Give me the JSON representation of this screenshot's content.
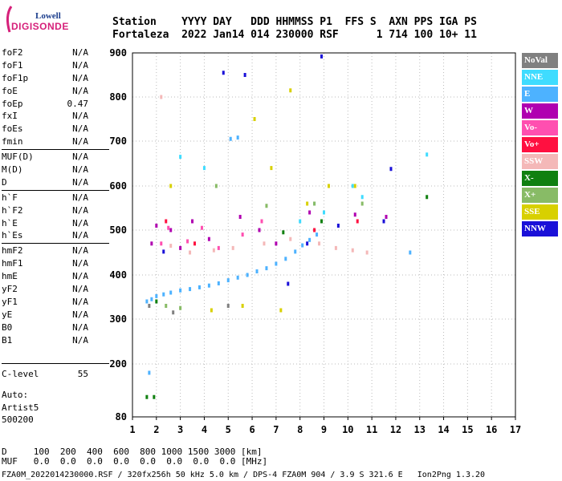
{
  "logo": {
    "line1": "Lowell",
    "line2": "DIGISONDE"
  },
  "header": {
    "line1": "Station    YYYY DAY   DDD HHMMSS P1  FFS S  AXN PPS IGA PS",
    "line2": "Fortaleza  2022 Jan14 014 230000 RSF      1 714 100 10+ 11"
  },
  "params": {
    "group1": [
      {
        "name": "foF2",
        "value": "N/A"
      },
      {
        "name": "foF1",
        "value": "N/A"
      },
      {
        "name": "foF1p",
        "value": "N/A"
      },
      {
        "name": "foE",
        "value": "N/A"
      },
      {
        "name": "foEp",
        "value": "0.47"
      },
      {
        "name": "fxI",
        "value": "N/A"
      },
      {
        "name": "foEs",
        "value": "N/A"
      },
      {
        "name": "fmin",
        "value": "N/A"
      }
    ],
    "group2": [
      {
        "name": "MUF(D)",
        "value": "N/A"
      },
      {
        "name": "M(D)",
        "value": "N/A"
      },
      {
        "name": "D",
        "value": "N/A"
      }
    ],
    "group3": [
      {
        "name": "h`F",
        "value": "N/A"
      },
      {
        "name": "h`F2",
        "value": "N/A"
      },
      {
        "name": "h`E",
        "value": "N/A"
      },
      {
        "name": "h`Es",
        "value": "N/A"
      }
    ],
    "group4": [
      {
        "name": "hmF2",
        "value": "N/A"
      },
      {
        "name": "hmF1",
        "value": "N/A"
      },
      {
        "name": "hmE",
        "value": "N/A"
      },
      {
        "name": "yF2",
        "value": "N/A"
      },
      {
        "name": "yF1",
        "value": "N/A"
      },
      {
        "name": "yE",
        "value": "N/A"
      },
      {
        "name": "B0",
        "value": "N/A"
      },
      {
        "name": "B1",
        "value": "N/A"
      }
    ]
  },
  "clevel": {
    "name": "C-level",
    "value": "55"
  },
  "auto": {
    "line1": "Auto:",
    "line2": "Artist5",
    "line3": "500200"
  },
  "legend": [
    {
      "label": "NoVal",
      "color": "#808080"
    },
    {
      "label": "NNE",
      "color": "#3fdcff"
    },
    {
      "label": "E",
      "color": "#4db2ff"
    },
    {
      "label": "W",
      "color": "#b000b0"
    },
    {
      "label": "Vo-",
      "color": "#ff4fb0"
    },
    {
      "label": "Vo+",
      "color": "#ff1040"
    },
    {
      "label": "SSW",
      "color": "#f4b8b8"
    },
    {
      "label": "X-",
      "color": "#108010"
    },
    {
      "label": "X+",
      "color": "#88bb66"
    },
    {
      "label": "SSE",
      "color": "#d8d000"
    },
    {
      "label": "NNW",
      "color": "#1a10d8"
    }
  ],
  "footer": {
    "line1": "D     100  200  400  600  800 1000 1500 3000 [km]",
    "line2": "MUF   0.0  0.0  0.0  0.0  0.0  0.0  0.0  0.0 [MHz]",
    "line3": "FZA0M_2022014230000.RSF / 320fx256h 50 kHz 5.0 km / DPS-4 FZA0M 904 / 3.9 S 321.6 E   Ion2Png 1.3.20"
  },
  "chart_data": {
    "type": "scatter",
    "title": "",
    "xlabel": "",
    "ylabel": "",
    "xlim": [
      1,
      17
    ],
    "ylim": [
      80,
      900
    ],
    "x_ticks": [
      1,
      2,
      3,
      4,
      5,
      6,
      7,
      8,
      9,
      10,
      11,
      12,
      13,
      14,
      15,
      16,
      17
    ],
    "y_ticks": [
      80,
      200,
      300,
      400,
      500,
      600,
      700,
      800,
      900
    ],
    "grid": "dotted",
    "legend_placement": "right",
    "series": [
      {
        "name": "E",
        "color": "#4db2ff",
        "points": [
          [
            1.6,
            340
          ],
          [
            1.8,
            345
          ],
          [
            2,
            352
          ],
          [
            2.3,
            356
          ],
          [
            2.6,
            360
          ],
          [
            3,
            365
          ],
          [
            3.4,
            368
          ],
          [
            3.8,
            372
          ],
          [
            4.2,
            376
          ],
          [
            4.6,
            381
          ],
          [
            5,
            388
          ],
          [
            5.4,
            394
          ],
          [
            5.8,
            400
          ],
          [
            6.2,
            408
          ],
          [
            6.6,
            415
          ],
          [
            7,
            425
          ],
          [
            7.4,
            436
          ],
          [
            7.8,
            452
          ],
          [
            8.1,
            466
          ],
          [
            8.4,
            478
          ],
          [
            8.7,
            490
          ],
          [
            5.1,
            705
          ],
          [
            5.4,
            708
          ],
          [
            1.7,
            180
          ],
          [
            12.6,
            450
          ]
        ]
      },
      {
        "name": "NNE",
        "color": "#3fdcff",
        "points": [
          [
            8,
            520
          ],
          [
            8.6,
            560
          ],
          [
            9,
            540
          ],
          [
            10.2,
            600
          ],
          [
            10.6,
            575
          ],
          [
            13.3,
            670
          ],
          [
            4,
            640
          ],
          [
            3,
            665
          ]
        ]
      },
      {
        "name": "W",
        "color": "#b000b0",
        "points": [
          [
            1.8,
            470
          ],
          [
            2,
            510
          ],
          [
            2.6,
            500
          ],
          [
            3,
            460
          ],
          [
            3.5,
            520
          ],
          [
            4.2,
            480
          ],
          [
            5.5,
            530
          ],
          [
            6.3,
            500
          ],
          [
            7,
            470
          ],
          [
            8.4,
            540
          ],
          [
            10.3,
            535
          ],
          [
            11.6,
            530
          ]
        ]
      },
      {
        "name": "Vo-",
        "color": "#ff4fb0",
        "points": [
          [
            2.2,
            470
          ],
          [
            2.5,
            505
          ],
          [
            3.3,
            475
          ],
          [
            3.9,
            505
          ],
          [
            4.6,
            460
          ],
          [
            5.6,
            490
          ],
          [
            6.4,
            520
          ]
        ]
      },
      {
        "name": "Vo+",
        "color": "#ff1040",
        "points": [
          [
            2.4,
            520
          ],
          [
            3.6,
            470
          ],
          [
            8.6,
            500
          ],
          [
            10.4,
            520
          ]
        ]
      },
      {
        "name": "SSW",
        "color": "#f4b8b8",
        "points": [
          [
            2.2,
            800
          ],
          [
            2.6,
            465
          ],
          [
            3.4,
            450
          ],
          [
            4.4,
            455
          ],
          [
            5.2,
            460
          ],
          [
            6.5,
            470
          ],
          [
            7.6,
            480
          ],
          [
            8.8,
            470
          ],
          [
            9.5,
            460
          ],
          [
            10.2,
            455
          ],
          [
            10.8,
            450
          ]
        ]
      },
      {
        "name": "X-",
        "color": "#108010",
        "points": [
          [
            1.6,
            125
          ],
          [
            1.9,
            125
          ],
          [
            2,
            340
          ],
          [
            7.3,
            495
          ],
          [
            8.9,
            520
          ],
          [
            13.3,
            575
          ]
        ]
      },
      {
        "name": "X+",
        "color": "#88bb66",
        "points": [
          [
            2.4,
            330
          ],
          [
            3,
            325
          ],
          [
            4.5,
            600
          ],
          [
            6.6,
            555
          ],
          [
            8.6,
            560
          ],
          [
            10.6,
            560
          ]
        ]
      },
      {
        "name": "SSE",
        "color": "#d8d000",
        "points": [
          [
            2.6,
            600
          ],
          [
            4.3,
            320
          ],
          [
            5.6,
            330
          ],
          [
            6.1,
            750
          ],
          [
            6.8,
            640
          ],
          [
            7.2,
            320
          ],
          [
            7.6,
            815
          ],
          [
            8.3,
            560
          ],
          [
            9.2,
            600
          ],
          [
            10.3,
            600
          ]
        ]
      },
      {
        "name": "NNW",
        "color": "#1a10d8",
        "points": [
          [
            2.3,
            452
          ],
          [
            4.8,
            855
          ],
          [
            5.7,
            850
          ],
          [
            7.5,
            380
          ],
          [
            8.3,
            470
          ],
          [
            8.9,
            892
          ],
          [
            9.6,
            510
          ],
          [
            11.5,
            520
          ],
          [
            11.8,
            638
          ]
        ]
      },
      {
        "name": "NoVal",
        "color": "#808080",
        "points": [
          [
            1.7,
            330
          ],
          [
            2.7,
            315
          ],
          [
            5,
            330
          ]
        ]
      }
    ]
  }
}
